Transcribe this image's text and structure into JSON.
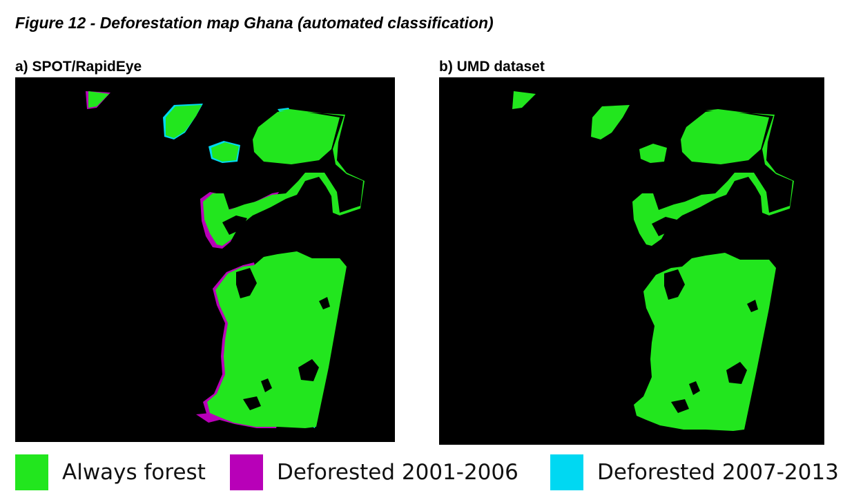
{
  "figure": {
    "title": "Figure 12 - Deforestation map Ghana (automated classification)"
  },
  "panels": {
    "a": {
      "label": "a) SPOT/RapidEye"
    },
    "b": {
      "label": "b) UMD dataset"
    }
  },
  "legend": [
    {
      "label": "Always forest",
      "color": "#22e61e"
    },
    {
      "label": "Deforested 2001-2006",
      "color": "#b800b8"
    },
    {
      "label": "Deforested 2007-2013",
      "color": "#00d8f2"
    }
  ],
  "colors": {
    "background": "#000000",
    "forest": "#22e61e",
    "defor_2001_2006": "#b800b8",
    "defor_2007_2013": "#00d8f2"
  }
}
